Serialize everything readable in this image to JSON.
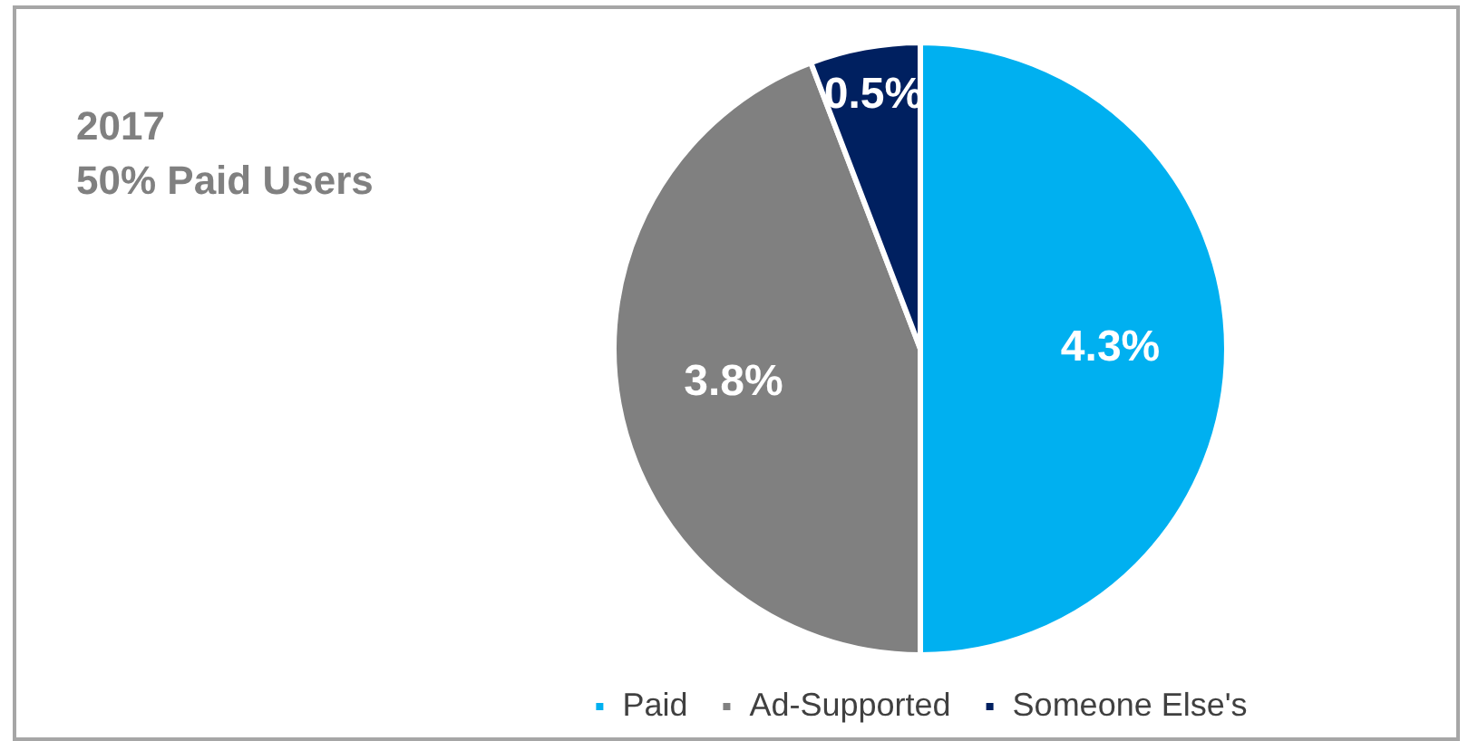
{
  "chart_data": {
    "type": "pie",
    "title": "2017",
    "subtitle": "50% Paid Users",
    "categories": [
      "Paid",
      "Ad-Supported",
      "Someone Else's"
    ],
    "values": [
      4.3,
      3.8,
      0.5
    ],
    "colors": [
      "#00b0f0",
      "#808080",
      "#002060"
    ],
    "value_labels": [
      "4.3%",
      "3.8%",
      "0.5%"
    ],
    "legend": "bottom"
  }
}
